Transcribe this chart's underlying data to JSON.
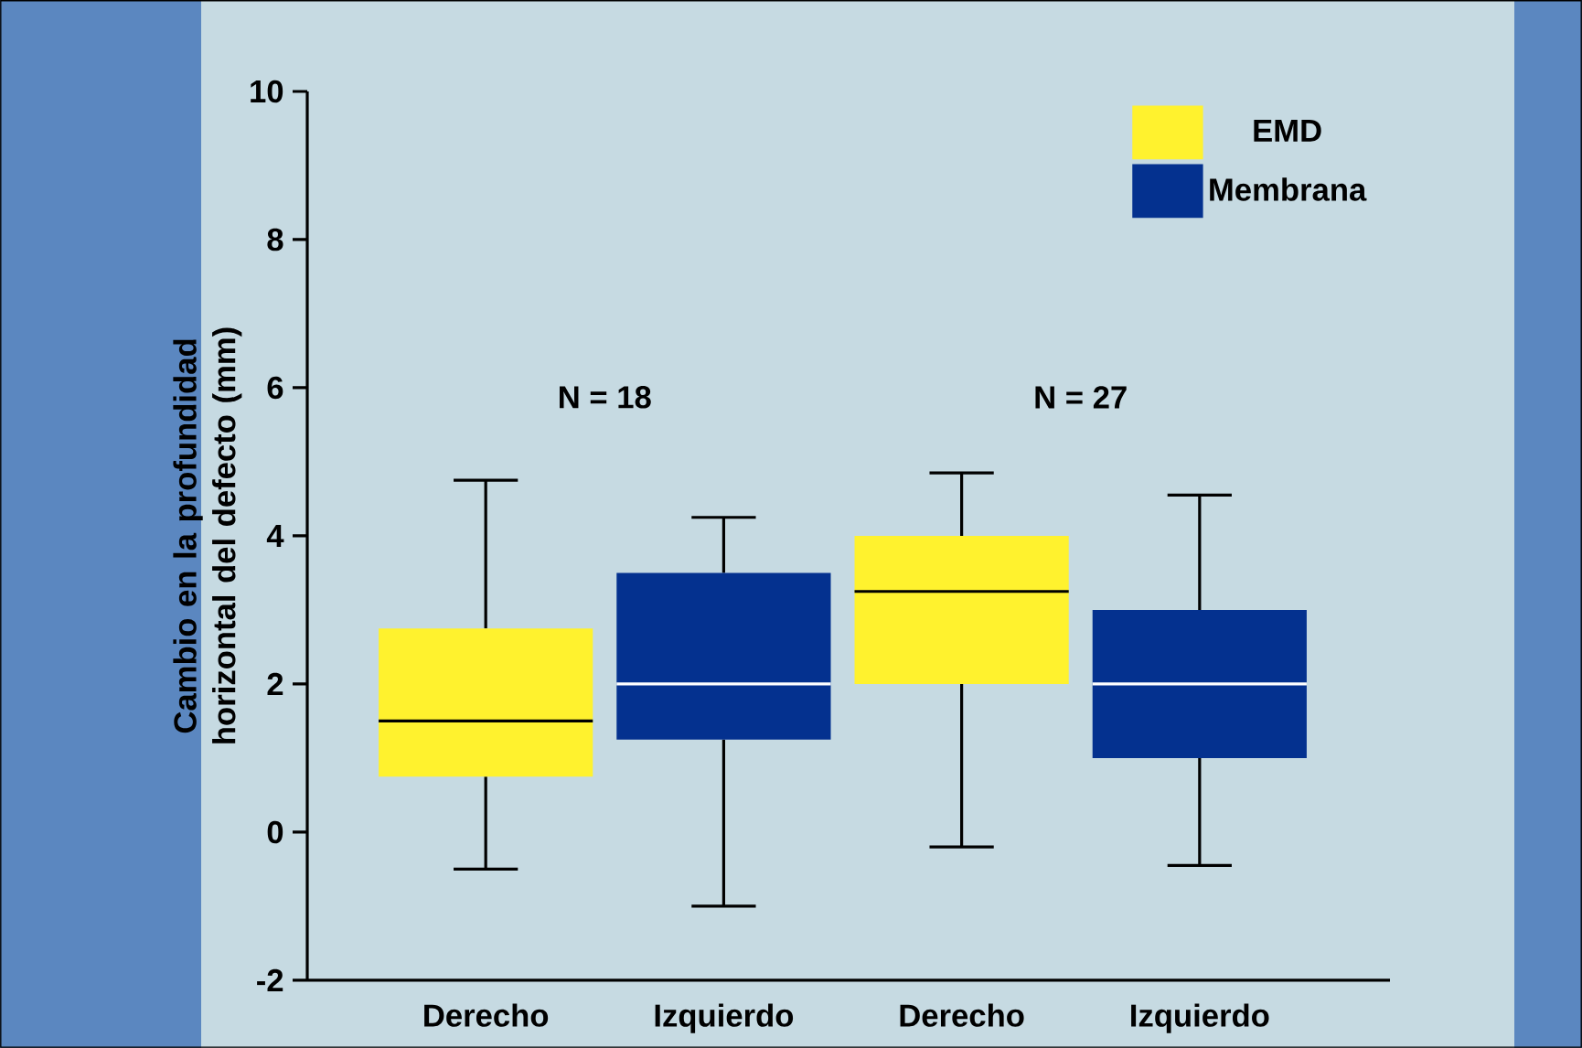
{
  "chart_data": {
    "type": "box",
    "ylabel": "Cambio en la profundidad horizontal del defecto (mm)",
    "categories": [
      "Derecho",
      "Izquierdo",
      "Derecho",
      "Izquierdo"
    ],
    "series": [
      {
        "name": "EMD",
        "color": "#fff22e",
        "boxes": [
          {
            "low": -0.5,
            "q1": 0.75,
            "median": 1.5,
            "q3": 2.75,
            "high": 4.75
          },
          null,
          {
            "low": -0.2,
            "q1": 2.0,
            "median": 3.25,
            "q3": 4.0,
            "high": 4.85
          },
          null
        ]
      },
      {
        "name": "Membrana",
        "color": "#04318f",
        "boxes": [
          null,
          {
            "low": -1.0,
            "q1": 1.25,
            "median": 2.0,
            "q3": 3.5,
            "high": 4.25
          },
          null,
          {
            "low": -0.45,
            "q1": 1.0,
            "median": 2.0,
            "q3": 3.0,
            "high": 4.55
          }
        ]
      }
    ],
    "ylim": [
      -2,
      10
    ],
    "yticks": [
      -2,
      0,
      2,
      4,
      6,
      8,
      10
    ],
    "annotations": [
      "N = 18",
      "N = 27"
    ],
    "legend": "top right",
    "grid": false
  }
}
